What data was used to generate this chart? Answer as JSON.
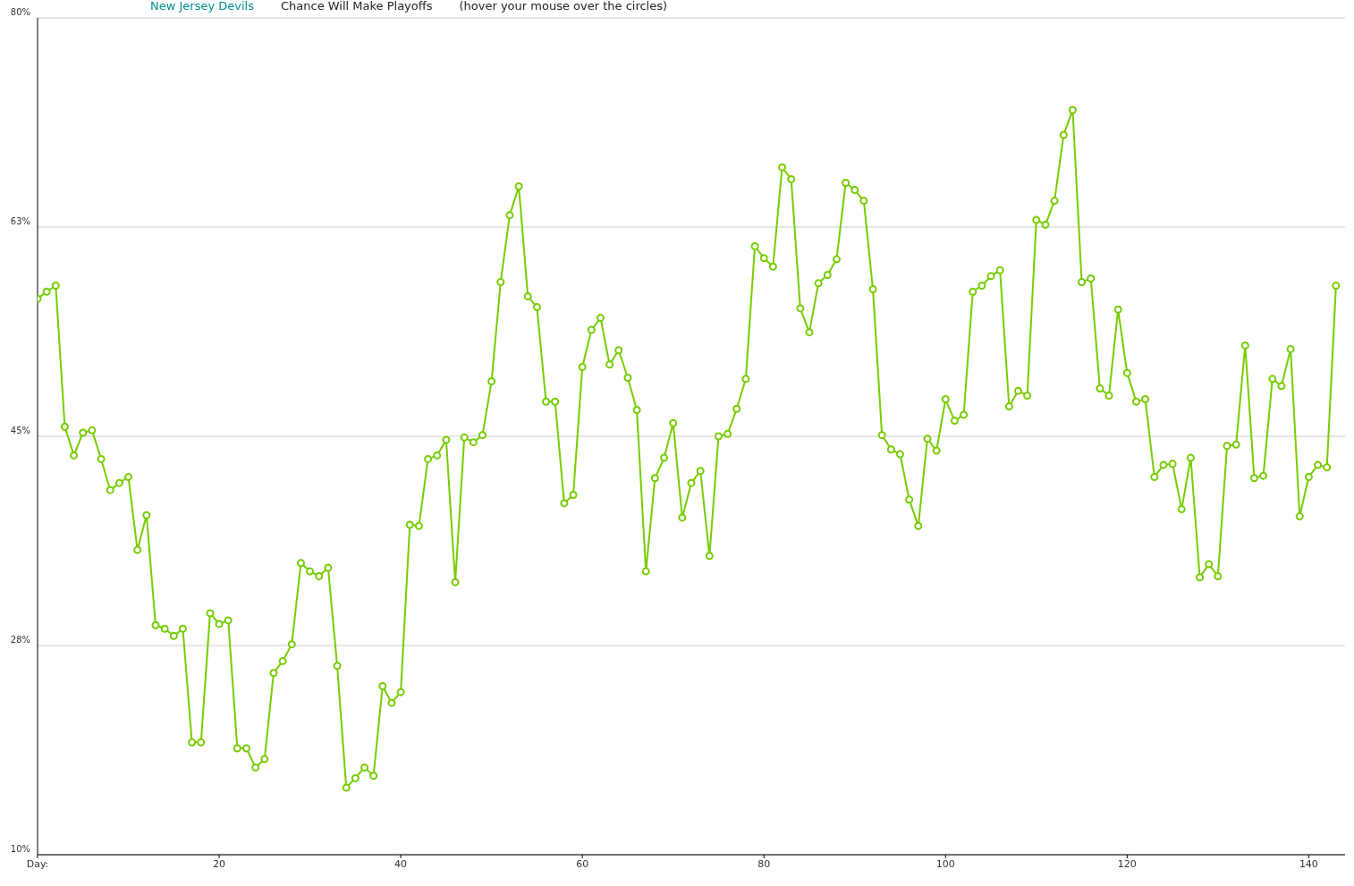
{
  "chart_data": {
    "type": "line",
    "title": "New Jersey Devils",
    "subtitle": "Chance Will Make Playoffs",
    "annotations": [
      "(hover your mouse over the circles)"
    ],
    "x": [
      0,
      1,
      2,
      3,
      4,
      5,
      6,
      7,
      8,
      9,
      10,
      11,
      12,
      13,
      14,
      15,
      16,
      17,
      18,
      19,
      20,
      21,
      22,
      23,
      24,
      25,
      26,
      27,
      28,
      29,
      30,
      31,
      32,
      33,
      34,
      35,
      36,
      37,
      38,
      39,
      40,
      41,
      42,
      43,
      44,
      45,
      46,
      47,
      48,
      49,
      50,
      51,
      52,
      53,
      54,
      55,
      56,
      57,
      58,
      59,
      60,
      61,
      62,
      63,
      64,
      65,
      66,
      67,
      68,
      69,
      70,
      71,
      72,
      73,
      74,
      75,
      76,
      77,
      78,
      79,
      80,
      81,
      82,
      83,
      84,
      85,
      86,
      87,
      88,
      89,
      90,
      91,
      92,
      93,
      94,
      95,
      96,
      97,
      98,
      99,
      100,
      101,
      102,
      103,
      104,
      105,
      106,
      107,
      108,
      109,
      110,
      111,
      112,
      113,
      114,
      115,
      116,
      117,
      118,
      119,
      120,
      121,
      122,
      123,
      124,
      125,
      126,
      127,
      128,
      129,
      130,
      131,
      132,
      133,
      134,
      135,
      136,
      137,
      138,
      139,
      140,
      141,
      142,
      143
    ],
    "series": [
      {
        "color": "#77cc00",
        "values": [
          56.5,
          57.1,
          57.6,
          45.8,
          43.4,
          45.3,
          45.5,
          43.1,
          40.5,
          41.1,
          41.6,
          35.5,
          38.4,
          29.2,
          28.9,
          28.3,
          28.9,
          19.4,
          19.4,
          30.2,
          29.3,
          29.6,
          18.9,
          18.9,
          17.3,
          18.0,
          25.2,
          26.2,
          27.6,
          34.4,
          33.7,
          33.3,
          34.0,
          25.8,
          15.6,
          16.4,
          17.3,
          16.6,
          24.1,
          22.7,
          23.6,
          37.6,
          37.5,
          43.1,
          43.4,
          44.7,
          32.8,
          44.9,
          44.5,
          45.1,
          49.6,
          57.9,
          63.5,
          65.9,
          56.7,
          55.8,
          47.9,
          47.9,
          39.4,
          40.1,
          50.8,
          53.9,
          54.9,
          51.0,
          52.2,
          49.9,
          47.2,
          33.7,
          41.5,
          43.2,
          46.1,
          38.2,
          41.1,
          42.1,
          35.0,
          45.0,
          45.2,
          47.3,
          49.8,
          60.9,
          59.9,
          59.2,
          67.5,
          66.5,
          55.7,
          53.7,
          57.8,
          58.5,
          59.8,
          66.2,
          65.6,
          64.7,
          57.3,
          45.1,
          43.9,
          43.5,
          39.7,
          37.5,
          44.8,
          43.8,
          48.1,
          46.3,
          46.8,
          57.1,
          57.6,
          58.4,
          58.9,
          47.5,
          48.8,
          48.4,
          63.1,
          62.7,
          64.7,
          70.2,
          72.3,
          57.9,
          58.2,
          49.0,
          48.4,
          55.6,
          50.3,
          47.9,
          48.1,
          41.6,
          42.6,
          42.7,
          38.9,
          43.2,
          33.2,
          34.3,
          33.3,
          44.2,
          44.3,
          52.6,
          41.5,
          41.7,
          49.8,
          49.2,
          52.3,
          38.3,
          41.6,
          42.6,
          42.4,
          57.6
        ]
      }
    ],
    "xlim": [
      0,
      144
    ],
    "xticks": [
      {
        "value": 0,
        "label": "Day:"
      },
      20,
      40,
      60,
      80,
      100,
      120,
      140
    ],
    "ylim": [
      10,
      80
    ],
    "yticks": [
      {
        "value": 10,
        "label": "10%"
      },
      {
        "value": 27.5,
        "label": "28%"
      },
      {
        "value": 45,
        "label": "45%"
      },
      {
        "value": 62.5,
        "label": "63%"
      },
      {
        "value": 80,
        "label": "80%"
      }
    ],
    "grid": "y",
    "marker": "circle",
    "line_style": "solid"
  }
}
